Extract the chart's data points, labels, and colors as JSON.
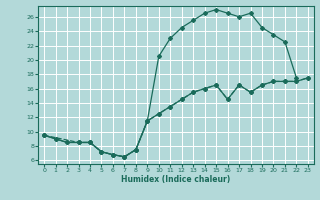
{
  "background_color": "#b3d9d9",
  "grid_color": "#ffffff",
  "line_color": "#1a6b5a",
  "xlabel": "Humidex (Indice chaleur)",
  "xlim": [
    -0.5,
    23.5
  ],
  "ylim": [
    5.5,
    27.5
  ],
  "yticks": [
    6,
    8,
    10,
    12,
    14,
    16,
    18,
    20,
    22,
    24,
    26
  ],
  "xticks": [
    0,
    1,
    2,
    3,
    4,
    5,
    6,
    7,
    8,
    9,
    10,
    11,
    12,
    13,
    14,
    15,
    16,
    17,
    18,
    19,
    20,
    21,
    22,
    23
  ],
  "curve_upper_x": [
    0,
    1,
    2,
    3,
    4,
    5,
    6,
    7,
    8,
    9,
    10,
    11,
    12,
    13,
    14,
    15,
    16,
    17,
    18,
    19,
    20,
    21,
    22
  ],
  "curve_upper_y": [
    9.5,
    9.0,
    8.5,
    8.5,
    8.5,
    7.2,
    6.8,
    6.5,
    7.5,
    11.5,
    20.5,
    23.0,
    24.5,
    25.5,
    26.5,
    27.0,
    26.5,
    26.0,
    26.5,
    24.5,
    23.5,
    22.5,
    17.5
  ],
  "curve_diag_x": [
    0,
    1,
    2,
    3,
    4,
    5,
    6,
    7,
    8,
    9,
    10,
    11,
    12,
    13,
    14,
    15,
    16,
    17,
    18,
    19,
    20,
    21,
    22,
    23
  ],
  "curve_diag_y": [
    9.5,
    9.0,
    8.5,
    8.5,
    8.5,
    7.2,
    6.8,
    6.5,
    7.5,
    11.5,
    12.5,
    13.5,
    14.5,
    15.5,
    16.0,
    16.5,
    14.5,
    16.5,
    15.5,
    16.5,
    17.0,
    17.0,
    17.0,
    17.5
  ],
  "curve_dip_x": [
    0,
    3,
    4,
    5,
    6,
    7,
    8,
    9,
    10,
    11,
    12,
    13,
    14,
    15,
    16,
    17,
    18,
    19,
    20,
    21,
    22,
    23
  ],
  "curve_dip_y": [
    9.5,
    8.5,
    8.5,
    7.2,
    6.8,
    6.5,
    7.5,
    11.5,
    12.5,
    13.5,
    14.5,
    15.5,
    16.0,
    16.5,
    14.5,
    16.5,
    15.5,
    16.5,
    17.0,
    17.0,
    17.0,
    17.5
  ]
}
